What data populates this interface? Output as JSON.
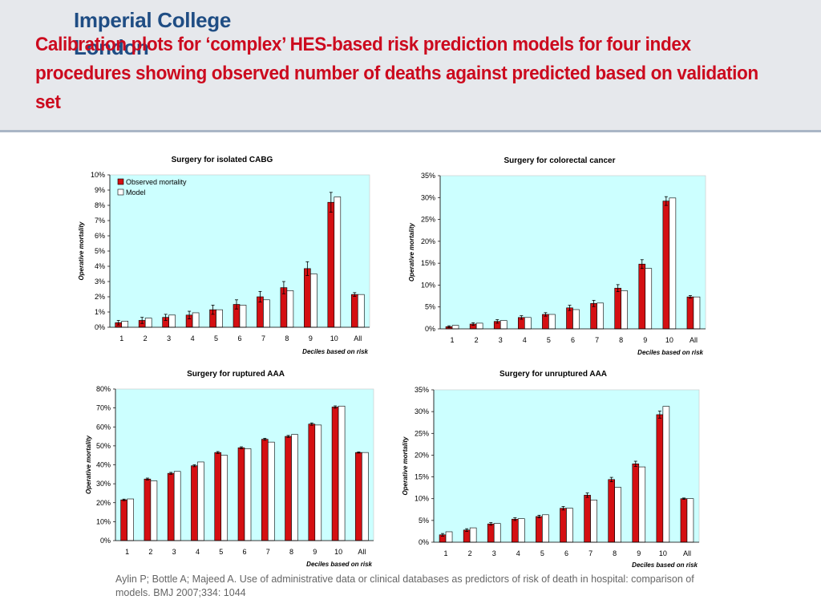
{
  "header": {
    "logo_line1": "Imperial College",
    "logo_line2": "London",
    "title": "Calibration plots for ‘complex’ HES-based risk prediction models for four index procedures showing observed number of deaths against predicted based on validation set"
  },
  "colors": {
    "observed": "#d40f12",
    "model": "#ffffff",
    "plot_background": "#ccffff",
    "title": "#cc0a1e",
    "logo": "#1f4d84"
  },
  "chart_data": [
    {
      "type": "bar",
      "title": "Surgery for isolated CABG",
      "xlabel": "Deciles based on risk",
      "ylabel": "Operative mortality",
      "categories": [
        "1",
        "2",
        "3",
        "4",
        "5",
        "6",
        "7",
        "8",
        "9",
        "10",
        "All"
      ],
      "ylim": [
        0,
        10
      ],
      "yticks": [
        "0%",
        "1%",
        "2%",
        "3%",
        "4%",
        "5%",
        "6%",
        "7%",
        "8%",
        "9%",
        "10%"
      ],
      "grid": false,
      "legend": "top-left",
      "series": [
        {
          "name": "Observed mortality",
          "values": [
            0.3,
            0.45,
            0.65,
            0.8,
            1.15,
            1.5,
            2.0,
            2.6,
            3.85,
            8.2,
            2.15
          ],
          "errors": [
            0.15,
            0.2,
            0.2,
            0.25,
            0.3,
            0.3,
            0.35,
            0.4,
            0.45,
            0.65,
            0.12
          ]
        },
        {
          "name": "Model",
          "values": [
            0.4,
            0.6,
            0.8,
            0.95,
            1.15,
            1.45,
            1.8,
            2.4,
            3.5,
            8.55,
            2.15
          ]
        }
      ]
    },
    {
      "type": "bar",
      "title": "Surgery for colorectal cancer",
      "xlabel": "Deciles based on risk",
      "ylabel": "Operative mortality",
      "categories": [
        "1",
        "2",
        "3",
        "4",
        "5",
        "6",
        "7",
        "8",
        "9",
        "10",
        "All"
      ],
      "ylim": [
        0,
        35
      ],
      "yticks": [
        "0%",
        "5%",
        "10%",
        "15%",
        "20%",
        "25%",
        "30%",
        "35%"
      ],
      "grid": false,
      "legend": "",
      "series": [
        {
          "name": "Observed mortality",
          "values": [
            0.5,
            1.1,
            1.7,
            2.6,
            3.3,
            4.8,
            5.8,
            9.3,
            14.8,
            29.2,
            7.3
          ],
          "errors": [
            0.2,
            0.3,
            0.4,
            0.4,
            0.4,
            0.6,
            0.7,
            0.8,
            1.0,
            1.0,
            0.3
          ]
        },
        {
          "name": "Model",
          "values": [
            0.8,
            1.3,
            1.9,
            2.6,
            3.3,
            4.4,
            5.9,
            8.7,
            13.8,
            29.9,
            7.3
          ]
        }
      ]
    },
    {
      "type": "bar",
      "title": "Surgery for ruptured AAA",
      "xlabel": "Deciles based on risk",
      "ylabel": "Operative mortality",
      "categories": [
        "1",
        "2",
        "3",
        "4",
        "5",
        "6",
        "7",
        "8",
        "9",
        "10",
        "All"
      ],
      "ylim": [
        0,
        80
      ],
      "yticks": [
        "0%",
        "10%",
        "20%",
        "30%",
        "40%",
        "50%",
        "60%",
        "70%",
        "80%"
      ],
      "grid": false,
      "legend": "",
      "series": [
        {
          "name": "Observed mortality",
          "values": [
            21.5,
            32.5,
            35.5,
            39.5,
            46.5,
            49,
            53.5,
            55,
            61.5,
            70.5,
            46.5
          ],
          "errors": [
            0.4,
            0.5,
            0.5,
            0.5,
            0.5,
            0.5,
            0.5,
            0.5,
            0.6,
            0.6,
            0.3
          ]
        },
        {
          "name": "Model",
          "values": [
            22,
            31.5,
            36.5,
            41.5,
            45,
            48.5,
            52,
            56,
            61,
            71,
            46.5
          ]
        }
      ]
    },
    {
      "type": "bar",
      "title": "Surgery for unruptured AAA",
      "xlabel": "Deciles based on risk",
      "ylabel": "Operative mortality",
      "categories": [
        "1",
        "2",
        "3",
        "4",
        "5",
        "6",
        "7",
        "8",
        "9",
        "10",
        "All"
      ],
      "ylim": [
        0,
        35
      ],
      "yticks": [
        "0%",
        "5%",
        "10%",
        "15%",
        "20%",
        "25%",
        "30%",
        "35%"
      ],
      "grid": false,
      "legend": "",
      "series": [
        {
          "name": "Observed mortality",
          "values": [
            1.7,
            2.8,
            4.2,
            5.3,
            5.9,
            7.8,
            10.8,
            14.4,
            18,
            29.3,
            10
          ],
          "errors": [
            0.3,
            0.3,
            0.3,
            0.3,
            0.3,
            0.4,
            0.5,
            0.5,
            0.6,
            0.8,
            0.15
          ]
        },
        {
          "name": "Model",
          "values": [
            2.4,
            3.3,
            4.3,
            5.4,
            6.3,
            7.8,
            9.7,
            12.6,
            17.3,
            31.2,
            10
          ]
        }
      ]
    }
  ],
  "citation": "Aylin P; Bottle A; Majeed A. Use of administrative data or clinical databases as predictors of risk of death in hospital: comparison of models. BMJ 2007;334: 1044"
}
